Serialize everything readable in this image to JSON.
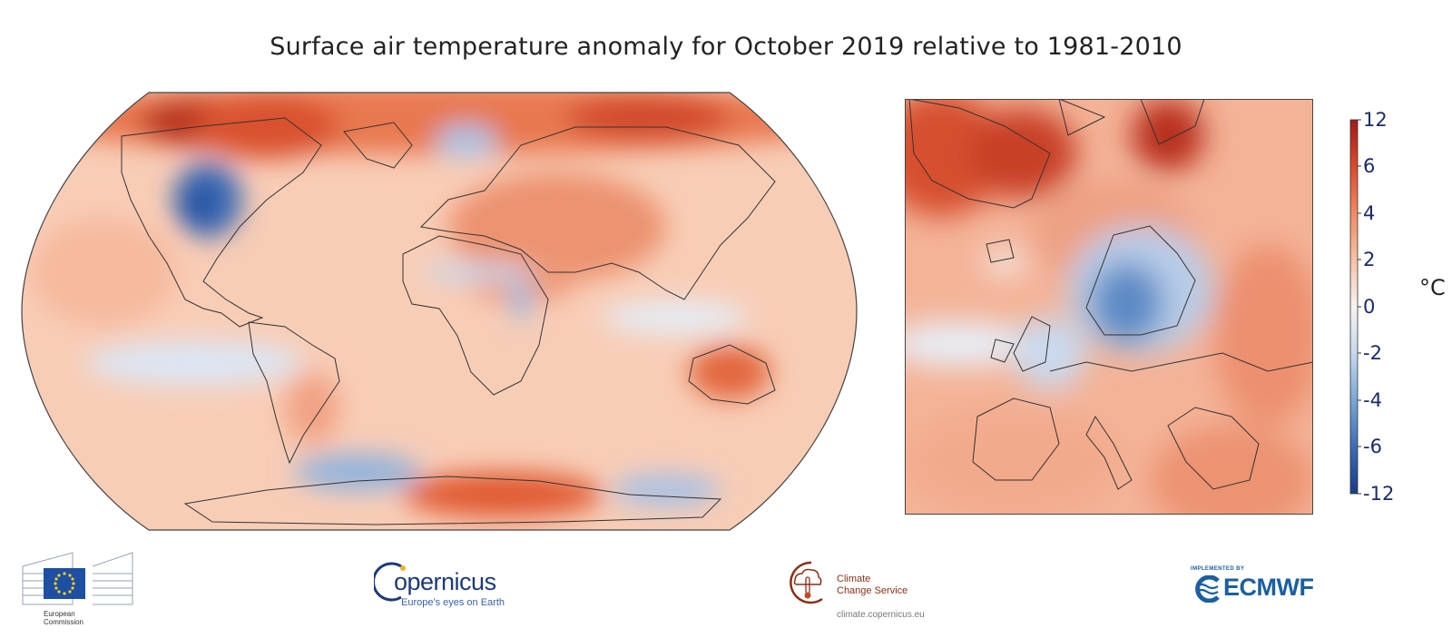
{
  "title": "Surface air temperature anomaly for October 2019 relative to 1981-2010",
  "colorbar": {
    "unit": "°C",
    "ticks": [
      "12",
      "6",
      "4",
      "2",
      "0",
      "-2",
      "-4",
      "-6",
      "-12"
    ],
    "colors": [
      "#a11a17",
      "#dc4a2b",
      "#f08a62",
      "#f7c1a6",
      "#f7f3f1",
      "#c6d8ef",
      "#7aa7d6",
      "#3d6cb5",
      "#183c87"
    ]
  },
  "maps": {
    "global": {
      "projection": "robinson",
      "region": "global"
    },
    "europe": {
      "region": "europe"
    }
  },
  "logos": {
    "ec": {
      "line1": "European",
      "line2": "Commission"
    },
    "copernicus": {
      "word": "opernicus",
      "letter": "c",
      "tagline": "Europe's eyes on Earth"
    },
    "c3s": {
      "line1": "Climate",
      "line2": "Change Service",
      "url": "climate.copernicus.eu"
    },
    "ecmwf": {
      "implemented": "IMPLEMENTED BY",
      "word": "ECMWF"
    }
  }
}
